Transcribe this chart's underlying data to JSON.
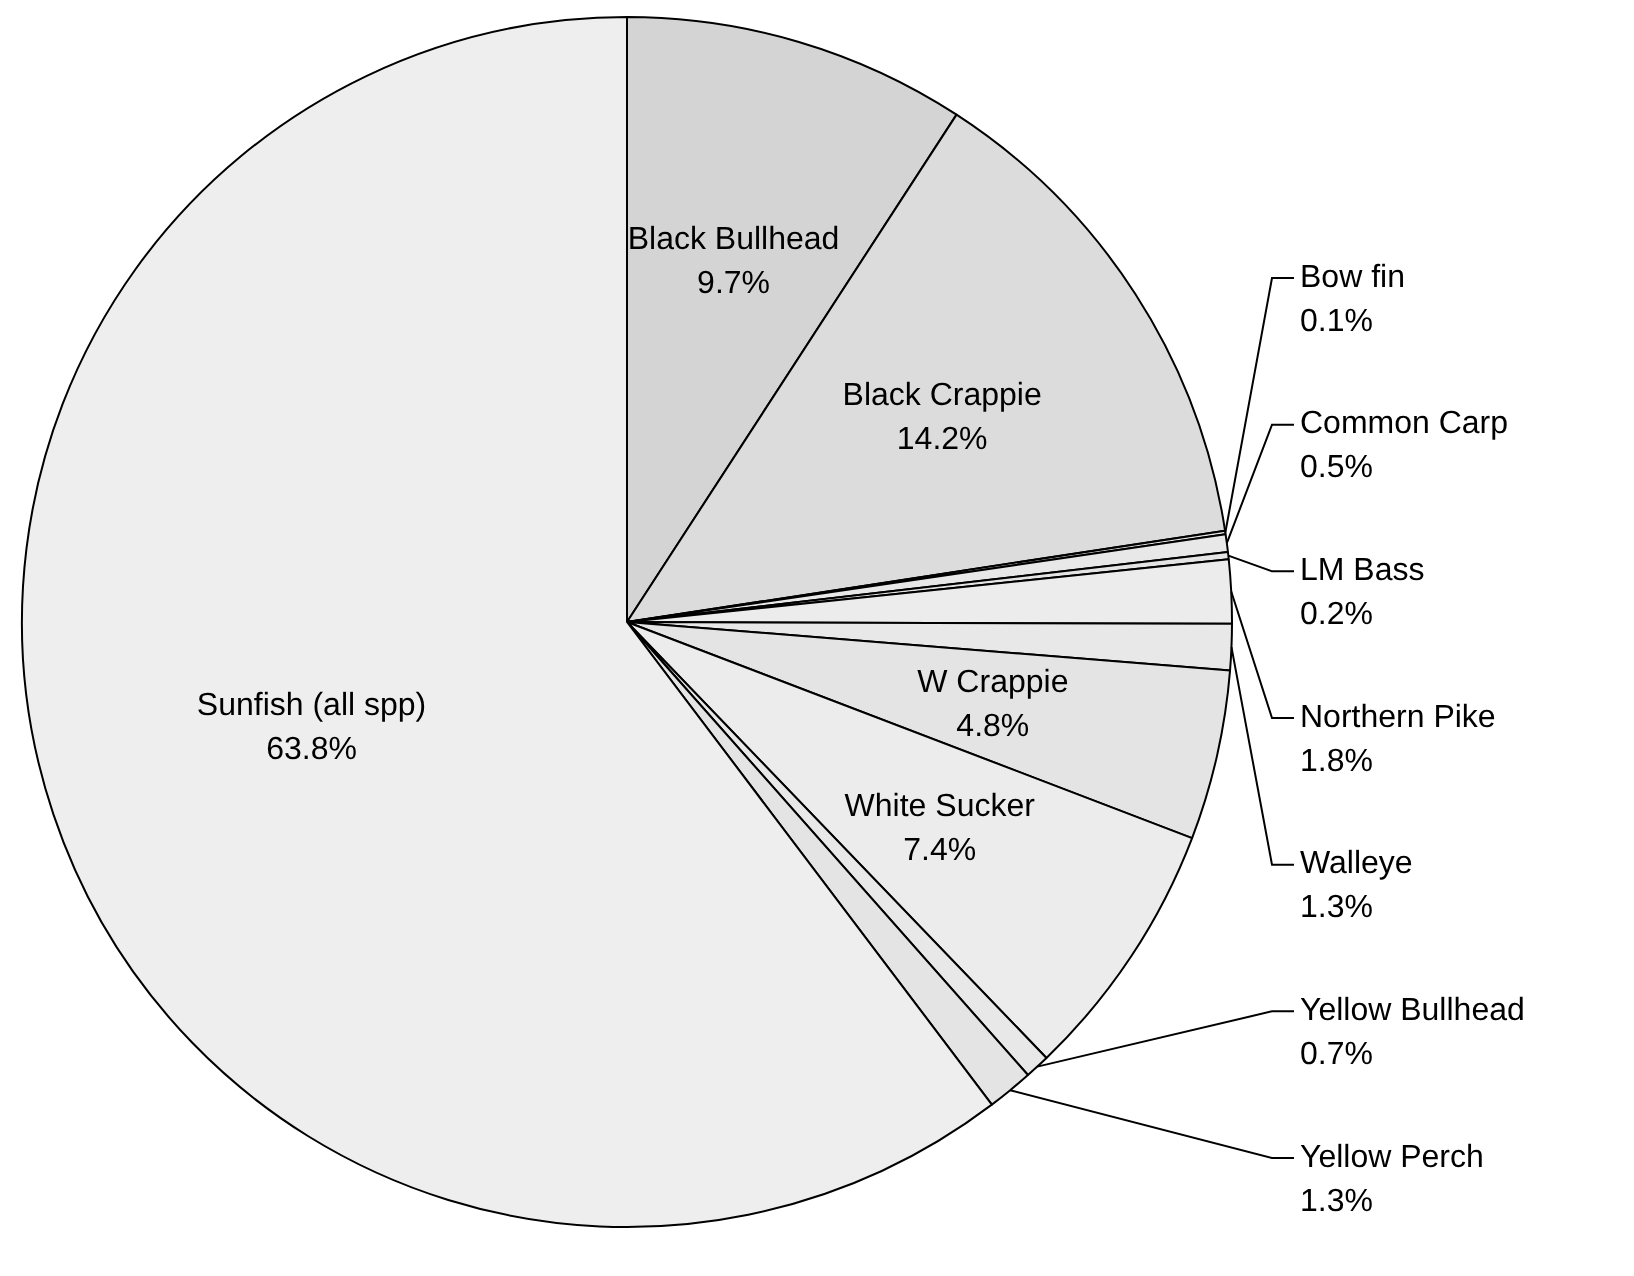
{
  "chart_data": {
    "type": "pie",
    "legend": false,
    "categories": [
      "Black Bullhead",
      "Black Crappie",
      "Bow fin",
      "Common Carp",
      "LM Bass",
      "Northern Pike",
      "Walleye",
      "W Crappie",
      "White Sucker",
      "Yellow Bullhead",
      "Yellow Perch",
      "Sunfish (all spp)"
    ],
    "values": [
      9.7,
      14.2,
      0.1,
      0.5,
      0.2,
      1.8,
      1.3,
      4.8,
      7.4,
      0.7,
      1.3,
      63.8
    ],
    "value_labels": [
      "9.7%",
      "14.2%",
      "0.1%",
      "0.5%",
      "0.2%",
      "1.8%",
      "1.3%",
      "4.8%",
      "7.4%",
      "0.7%",
      "1.3%",
      "63.8%"
    ],
    "colors": [
      "#d4d4d4",
      "#dcdcdc",
      "#e4e4e4",
      "#e8e8e8",
      "#e4e4e4",
      "#ececec",
      "#e8e8e8",
      "#e4e4e4",
      "#ececec",
      "#e8e8e8",
      "#e4e4e4",
      "#eeeeee"
    ]
  }
}
